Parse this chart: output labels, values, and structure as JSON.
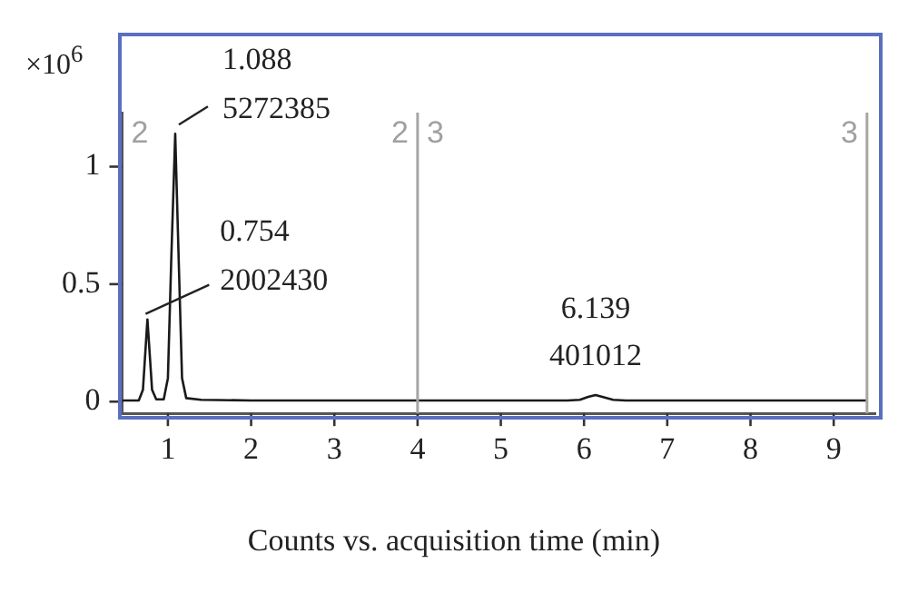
{
  "chart_data": {
    "type": "line",
    "xlabel": "Counts vs. acquisition time (min)",
    "ylabel": "×10$^{6}$",
    "x": [
      0.45,
      0.65,
      0.7,
      0.754,
      0.81,
      0.86,
      0.95,
      1.0,
      1.04,
      1.088,
      1.13,
      1.17,
      1.22,
      1.4,
      2,
      5.8,
      5.95,
      6.05,
      6.139,
      6.22,
      6.35,
      6.5,
      9.4
    ],
    "series": [
      {
        "color": "#1a1a1a",
        "values": [
          0.005,
          0.005,
          0.05,
          0.35,
          0.05,
          0.01,
          0.01,
          0.1,
          0.6,
          1.14,
          0.6,
          0.1,
          0.015,
          0.008,
          0.005,
          0.005,
          0.008,
          0.02,
          0.028,
          0.02,
          0.008,
          0.005,
          0.005
        ]
      }
    ],
    "xlim": [
      0.45,
      9.5
    ],
    "xticks": [
      1,
      2,
      3,
      4,
      5,
      6,
      7,
      8,
      9
    ],
    "ylim": [
      -0.05,
      1.23
    ],
    "yticks": [
      0,
      0.5,
      1
    ],
    "ref_lines": [
      {
        "axis": "x",
        "value": 4,
        "color": "#a6a6a6"
      },
      {
        "axis": "x",
        "value": 9.4,
        "color": "#a6a6a6"
      }
    ],
    "annotations": [
      "1.088",
      {
        "text": "5272385",
        "x": 1.088,
        "y": 1.14
      },
      "0.754",
      {
        "text": "2002430",
        "x": 0.754,
        "y": 0.35
      },
      "6.139",
      {
        "text": "401012",
        "x": 6.139,
        "y": 0.028
      },
      "2",
      "2",
      "3",
      "3"
    ],
    "grid": false,
    "legend": false,
    "marker": "none",
    "line_style": "solid"
  }
}
